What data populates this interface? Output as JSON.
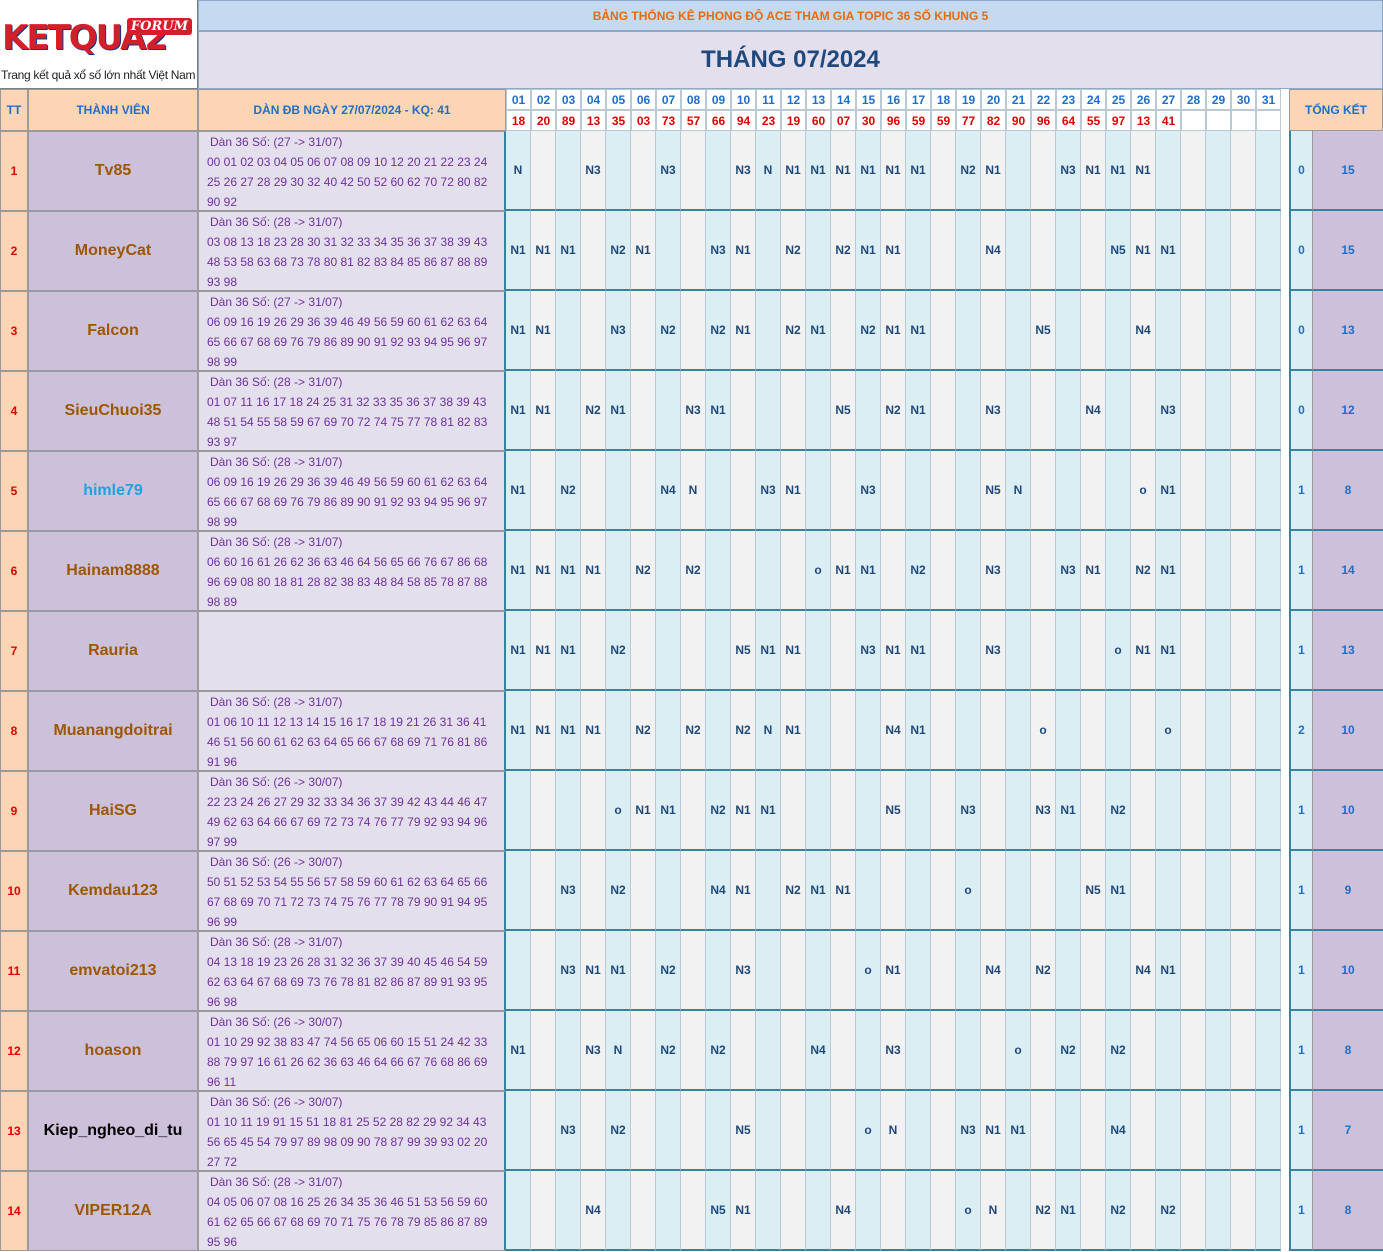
{
  "logo": {
    "text": "KETQUA2",
    "badge": "FORUM",
    "tagline": "Trang kết quả xổ số lớn nhất Việt Nam"
  },
  "title_top": "BẢNG THỐNG KÊ PHONG ĐỘ ACE THAM GIA TOPIC 36 SỐ KHUNG 5",
  "title_main": "THÁNG 07/2024",
  "headers": {
    "tt": "TT",
    "member": "THÀNH VIÊN",
    "dan": "DÀN ĐB NGÀY 27/07/2024 - KQ: 41",
    "summary": "TỔNG KẾT"
  },
  "days": [
    "01",
    "02",
    "03",
    "04",
    "05",
    "06",
    "07",
    "08",
    "09",
    "10",
    "11",
    "12",
    "13",
    "14",
    "15",
    "16",
    "17",
    "18",
    "19",
    "20",
    "21",
    "22",
    "23",
    "24",
    "25",
    "26",
    "27",
    "28",
    "29",
    "30",
    "31"
  ],
  "results": [
    "18",
    "20",
    "89",
    "13",
    "35",
    "03",
    "73",
    "57",
    "66",
    "94",
    "23",
    "19",
    "60",
    "07",
    "30",
    "96",
    "59",
    "59",
    "77",
    "82",
    "90",
    "96",
    "64",
    "55",
    "97",
    "13",
    "41",
    "",
    "",
    "",
    ""
  ],
  "colors": {
    "member_default": "#9c5700",
    "member_himle79": "#1fa3e0",
    "member_kiep": "#000000"
  },
  "rows": [
    {
      "tt": "1",
      "name": "Tv85",
      "color": "#9c5700",
      "dan_header": "Dàn 36 Số: (27 -> 31/07)",
      "dan": [
        "00 01 02 03 04 05 06 07 08 09 10 12 20 21 22 23 24",
        "25 26 27 28 29 30 32 40 42 50 52 60 62 70 72 80 82",
        "90 92"
      ],
      "marks": [
        "N",
        "",
        "",
        "N3",
        "",
        "",
        "N3",
        "",
        "",
        "N3",
        "N",
        "N1",
        "N1",
        "N1",
        "N1",
        "N1",
        "N1",
        "",
        "N2",
        "N1",
        "",
        "",
        "N3",
        "N1",
        "N1",
        "N1",
        "",
        "",
        "",
        "",
        ""
      ],
      "sum1": "0",
      "sum2": "15"
    },
    {
      "tt": "2",
      "name": "MoneyCat",
      "color": "#9c5700",
      "dan_header": "Dàn 36 Số: (28 -> 31/07)",
      "dan": [
        "03 08 13 18 23 28 30 31 32 33 34 35 36 37 38 39 43",
        "48 53 58 63 68 73 78 80 81 82 83 84 85 86 87 88 89",
        "93 98"
      ],
      "marks": [
        "N1",
        "N1",
        "N1",
        "",
        "N2",
        "N1",
        "",
        "",
        "N3",
        "N1",
        "",
        "N2",
        "",
        "N2",
        "N1",
        "N1",
        "",
        "",
        "",
        "N4",
        "",
        "",
        "",
        "",
        "N5",
        "N1",
        "N1",
        "",
        "",
        "",
        ""
      ],
      "sum1": "0",
      "sum2": "15"
    },
    {
      "tt": "3",
      "name": "Falcon",
      "color": "#9c5700",
      "dan_header": "Dàn 36 Số: (27 -> 31/07)",
      "dan": [
        "06 09 16 19 26 29 36 39 46 49 56 59 60 61 62 63 64",
        "65 66 67 68 69 76 79 86 89 90 91 92 93 94 95 96 97",
        "98 99"
      ],
      "marks": [
        "N1",
        "N1",
        "",
        "",
        "N3",
        "",
        "N2",
        "",
        "N2",
        "N1",
        "",
        "N2",
        "N1",
        "",
        "N2",
        "N1",
        "N1",
        "",
        "",
        "",
        "",
        "N5",
        "",
        "",
        "",
        "N4",
        "",
        "",
        "",
        "",
        ""
      ],
      "sum1": "0",
      "sum2": "13"
    },
    {
      "tt": "4",
      "name": "SieuChuoi35",
      "color": "#9c5700",
      "dan_header": "Dàn 36 Số: (28 -> 31/07)",
      "dan": [
        "01 07 11 16 17 18 24 25 31 32 33 35 36 37 38 39 43",
        "48 51 54 55 58 59 67 69 70 72 74 75 77 78 81 82 83",
        "93 97"
      ],
      "marks": [
        "N1",
        "N1",
        "",
        "N2",
        "N1",
        "",
        "",
        "N3",
        "N1",
        "",
        "",
        "",
        "",
        "N5",
        "",
        "N2",
        "N1",
        "",
        "",
        "N3",
        "",
        "",
        "",
        "N4",
        "",
        "",
        "N3",
        "",
        "",
        "",
        ""
      ],
      "sum1": "0",
      "sum2": "12"
    },
    {
      "tt": "5",
      "name": "himle79",
      "color": "#1fa3e0",
      "dan_header": "Dàn 36 Số: (28 -> 31/07)",
      "dan": [
        "06 09 16 19 26 29 36 39 46 49 56 59 60 61 62 63 64",
        "65 66 67 68 69 76 79 86 89 90 91 92 93 94 95 96 97",
        "98 99"
      ],
      "marks": [
        "N1",
        "",
        "N2",
        "",
        "",
        "",
        "N4",
        "N",
        "",
        "",
        "N3",
        "N1",
        "",
        "",
        "N3",
        "",
        "",
        "",
        "",
        "N5",
        "N",
        "",
        "",
        "",
        "",
        "o",
        "N1",
        "",
        "",
        "",
        ""
      ],
      "sum1": "1",
      "sum2": "8"
    },
    {
      "tt": "6",
      "name": "Hainam8888",
      "color": "#9c5700",
      "dan_header": "Dàn 36 Số: (28 -> 31/07)",
      "dan": [
        "06 60 16 61 26 62 36 63 46 64 56 65 66 76 67 86 68",
        "96 69 08 80 18 81 28 82 38 83 48 84 58 85 78 87 88",
        "98 89"
      ],
      "marks": [
        "N1",
        "N1",
        "N1",
        "N1",
        "",
        "N2",
        "",
        "N2",
        "",
        "",
        "",
        "",
        "o",
        "N1",
        "N1",
        "",
        "N2",
        "",
        "",
        "N3",
        "",
        "",
        "N3",
        "N1",
        "",
        "N2",
        "N1",
        "",
        "",
        "",
        ""
      ],
      "sum1": "1",
      "sum2": "14"
    },
    {
      "tt": "7",
      "name": "Rauria",
      "color": "#9c5700",
      "dan_header": "",
      "dan": [],
      "marks": [
        "N1",
        "N1",
        "N1",
        "",
        "N2",
        "",
        "",
        "",
        "",
        "N5",
        "N1",
        "N1",
        "",
        "",
        "N3",
        "N1",
        "N1",
        "",
        "",
        "N3",
        "",
        "",
        "",
        "",
        "o",
        "N1",
        "N1",
        "",
        "",
        "",
        ""
      ],
      "sum1": "1",
      "sum2": "13"
    },
    {
      "tt": "8",
      "name": "Muanangdoitrai",
      "color": "#9c5700",
      "dan_header": "Dàn 36 Số: (28 -> 31/07)",
      "dan": [
        "01 06 10 11 12 13 14 15 16 17 18 19 21 26 31 36 41",
        "46 51 56 60 61 62 63 64 65 66 67 68 69 71 76 81 86",
        "91 96"
      ],
      "marks": [
        "N1",
        "N1",
        "N1",
        "N1",
        "",
        "N2",
        "",
        "N2",
        "",
        "N2",
        "N",
        "N1",
        "",
        "",
        "",
        "N4",
        "N1",
        "",
        "",
        "",
        "",
        "o",
        "",
        "",
        "",
        "",
        "o",
        "",
        "",
        "",
        ""
      ],
      "sum1": "2",
      "sum2": "10"
    },
    {
      "tt": "9",
      "name": "HaiSG",
      "color": "#9c5700",
      "dan_header": "Dàn 36 Số: (26 -> 30/07)",
      "dan": [
        "22 23 24 26 27 29 32 33 34 36 37 39 42 43 44 46 47",
        "49 62 63 64 66 67 69 72 73 74 76 77 79 92 93 94 96",
        "97 99"
      ],
      "marks": [
        "",
        "",
        "",
        "",
        "o",
        "N1",
        "N1",
        "",
        "N2",
        "N1",
        "N1",
        "",
        "",
        "",
        "",
        "N5",
        "",
        "",
        "N3",
        "",
        "",
        "N3",
        "N1",
        "",
        "N2",
        "",
        "",
        "",
        "",
        "",
        ""
      ],
      "sum1": "1",
      "sum2": "10"
    },
    {
      "tt": "10",
      "name": "Kemdau123",
      "color": "#9c5700",
      "dan_header": "Dàn 36 Số: (26 -> 30/07)",
      "dan": [
        "50 51 52 53 54 55 56 57 58 59 60 61 62 63 64 65 66",
        "67 68 69 70 71 72 73 74 75 76 77 78 79 90 91 94 95",
        "96 99"
      ],
      "marks": [
        "",
        "",
        "N3",
        "",
        "N2",
        "",
        "",
        "",
        "N4",
        "N1",
        "",
        "N2",
        "N1",
        "N1",
        "",
        "",
        "",
        "",
        "o",
        "",
        "",
        "",
        "",
        "N5",
        "N1",
        "",
        "",
        "",
        "",
        "",
        ""
      ],
      "sum1": "1",
      "sum2": "9"
    },
    {
      "tt": "11",
      "name": "emvatoi213",
      "color": "#9c5700",
      "dan_header": "Dàn 36 Số: (28 -> 31/07)",
      "dan": [
        "04 13 18 19 23 26 28 31 32 36 37 39 40 45 46 54 59",
        "62 63 64 67 68 69 73 76 78 81 82 86 87 89 91 93 95",
        "96 98"
      ],
      "marks": [
        "",
        "",
        "N3",
        "N1",
        "N1",
        "",
        "N2",
        "",
        "",
        "N3",
        "",
        "",
        "",
        "",
        "o",
        "N1",
        "",
        "",
        "",
        "N4",
        "",
        "N2",
        "",
        "",
        "",
        "N4",
        "N1",
        "",
        "",
        "",
        ""
      ],
      "sum1": "1",
      "sum2": "10"
    },
    {
      "tt": "12",
      "name": "hoason",
      "color": "#9c5700",
      "dan_header": "Dàn 36 Số: (26 -> 30/07)",
      "dan": [
        "01 10 29 92 38 83 47 74 56 65 06 60 15 51 24 42 33",
        "88 79 97 16 61 26 62 36 63 46 64 66 67 76 68 86 69",
        "96 11"
      ],
      "marks": [
        "N1",
        "",
        "",
        "N3",
        "N",
        "",
        "N2",
        "",
        "N2",
        "",
        "",
        "",
        "N4",
        "",
        "",
        "N3",
        "",
        "",
        "",
        "",
        "o",
        "",
        "N2",
        "",
        "N2",
        "",
        "",
        "",
        "",
        "",
        ""
      ],
      "sum1": "1",
      "sum2": "8"
    },
    {
      "tt": "13",
      "name": "Kiep_ngheo_di_tu",
      "color": "#000000",
      "dan_header": "Dàn 36 Số: (26 -> 30/07)",
      "dan": [
        "01 10 11 19 91 15 51 18 81 25 52 28 82 29 92 34 43",
        "56 65 45 54 79 97 89 98 09 90 78 87 99 39 93 02 20",
        "27 72"
      ],
      "marks": [
        "",
        "",
        "N3",
        "",
        "N2",
        "",
        "",
        "",
        "",
        "N5",
        "",
        "",
        "",
        "",
        "o",
        "N",
        "",
        "",
        "N3",
        "N1",
        "N1",
        "",
        "",
        "",
        "N4",
        "",
        "",
        "",
        "",
        "",
        ""
      ],
      "sum1": "1",
      "sum2": "7"
    },
    {
      "tt": "14",
      "name": "VIPER12A",
      "color": "#9c5700",
      "dan_header": "Dàn 36 Số: (28 -> 31/07)",
      "dan": [
        "04 05 06 07 08 16 25 26 34 35 36 46 51 53 56 59 60",
        "61 62 65 66 67 68 69 70 71 75 76 78 79 85 86 87 89",
        "95 96"
      ],
      "marks": [
        "",
        "",
        "",
        "N4",
        "",
        "",
        "",
        "",
        "N5",
        "N1",
        "",
        "",
        "",
        "N4",
        "",
        "",
        "",
        "",
        "o",
        "N",
        "",
        "N2",
        "N1",
        "",
        "N2",
        "",
        "N2",
        "",
        "",
        "",
        ""
      ],
      "sum1": "1",
      "sum2": "8"
    }
  ]
}
